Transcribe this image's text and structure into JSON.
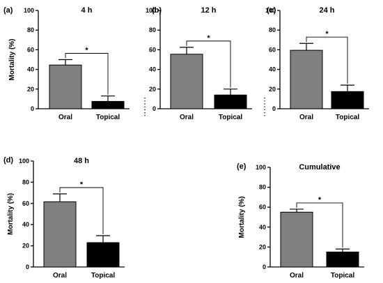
{
  "colors": {
    "oral": "#808080",
    "topical": "#000000"
  },
  "y_axis_label": "Mortality (%)",
  "chart_data": [
    {
      "panel": "(a)",
      "type": "bar",
      "title": "4 h",
      "categories": [
        "Oral",
        "Topical"
      ],
      "values": [
        44.5,
        7.5
      ],
      "errors": [
        5.5,
        5.5
      ],
      "ylabel": "Mortality (%)",
      "ylim": [
        0,
        100
      ],
      "yticks": [
        "0",
        "20",
        "40",
        "60",
        "80",
        "100"
      ],
      "significance": "*"
    },
    {
      "panel": "(b)",
      "type": "bar",
      "title": "12 h",
      "categories": [
        "Oral",
        "Topical"
      ],
      "values": [
        55.5,
        14
      ],
      "errors": [
        7,
        6
      ],
      "ylabel": "",
      "ylim": [
        0,
        100
      ],
      "yticks": [
        "0",
        "20",
        "40",
        "60",
        "80",
        "100"
      ],
      "significance": "*"
    },
    {
      "panel": "(c)",
      "type": "bar",
      "title": "24 h",
      "categories": [
        "Oral",
        "Topical"
      ],
      "values": [
        59.5,
        17.5
      ],
      "errors": [
        7,
        6.5
      ],
      "ylabel": "",
      "ylim": [
        0,
        100
      ],
      "yticks": [
        "0",
        "20",
        "40",
        "60",
        "80",
        "100"
      ],
      "significance": "*"
    },
    {
      "panel": "(d)",
      "type": "bar",
      "title": "48 h",
      "categories": [
        "Oral",
        "Topical"
      ],
      "values": [
        61.5,
        23
      ],
      "errors": [
        7.5,
        6.5
      ],
      "ylabel": "Mortality (%)",
      "ylim": [
        0,
        100
      ],
      "yticks": [
        "0",
        "20",
        "40",
        "60",
        "80",
        "100"
      ],
      "significance": "*"
    },
    {
      "panel": "(e)",
      "type": "bar",
      "title": "Cumulative",
      "categories": [
        "Oral",
        "Topical"
      ],
      "values": [
        55,
        15
      ],
      "errors": [
        3,
        3
      ],
      "ylabel": "Mortality (%)",
      "ylim": [
        0,
        100
      ],
      "yticks": [
        "0",
        "20",
        "40",
        "60",
        "80",
        "100"
      ],
      "significance": "*"
    }
  ]
}
